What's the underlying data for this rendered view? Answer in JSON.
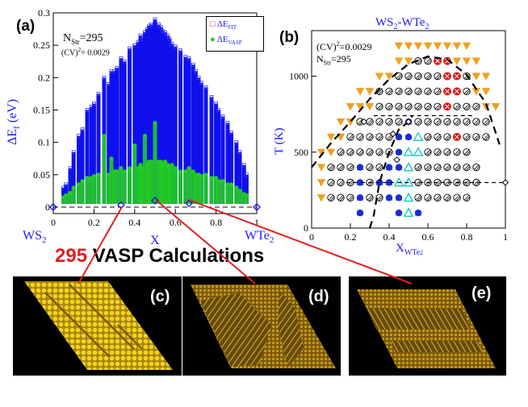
{
  "chart_data": [
    {
      "type": "scatter",
      "panel_label": "(a)",
      "ylabel": "ΔE",
      "ylabel_sub": "f",
      "ylabel_unit": " (eV)",
      "xlabel": "X",
      "xlim": [
        0,
        1
      ],
      "ylim": [
        -0.01,
        0.3
      ],
      "xticks": [
        "0",
        "0.2",
        "0.4",
        "0.6",
        "0.8",
        "1"
      ],
      "yticks": [
        "0",
        "0.05",
        "0.1",
        "0.15",
        "0.2",
        "0.25",
        "0.3"
      ],
      "left_end_label": "WS",
      "left_end_sub": "2",
      "right_end_label": "WTe",
      "right_end_sub": "2",
      "nstr_label": "N",
      "nstr_sub": "Str",
      "nstr_value": "=295",
      "cv_label": "(CV)",
      "cv_sup": "2",
      "cv_value": "= 0.0029",
      "legend": [
        {
          "symbol": "□",
          "name": "ΔE",
          "sub": "FIT",
          "color": "#ee2222"
        },
        {
          "symbol": "●",
          "name": "ΔE",
          "sub": "VASP",
          "color": "#22cc22"
        }
      ],
      "series": [
        {
          "name": "FIT column maxima",
          "x": [
            0.05,
            0.0625,
            0.0833,
            0.1,
            0.125,
            0.1429,
            0.1667,
            0.1875,
            0.2,
            0.2222,
            0.25,
            0.2727,
            0.2857,
            0.3,
            0.3125,
            0.3333,
            0.35,
            0.375,
            0.4,
            0.4167,
            0.4286,
            0.4375,
            0.45,
            0.4615,
            0.4706,
            0.4815,
            0.5,
            0.5185,
            0.5294,
            0.5385,
            0.55,
            0.5625,
            0.5714,
            0.5833,
            0.6,
            0.625,
            0.65,
            0.6667,
            0.6875,
            0.7,
            0.7143,
            0.7273,
            0.75,
            0.7778,
            0.8,
            0.8125,
            0.8333,
            0.8571,
            0.875,
            0.9,
            0.9167,
            0.9375,
            0.95
          ],
          "values": [
            0.03,
            0.035,
            0.06,
            0.085,
            0.11,
            0.12,
            0.15,
            0.155,
            0.16,
            0.175,
            0.2,
            0.19,
            0.21,
            0.21,
            0.215,
            0.23,
            0.225,
            0.245,
            0.25,
            0.255,
            0.265,
            0.26,
            0.27,
            0.275,
            0.28,
            0.282,
            0.29,
            0.282,
            0.278,
            0.272,
            0.27,
            0.265,
            0.26,
            0.252,
            0.248,
            0.242,
            0.232,
            0.23,
            0.22,
            0.21,
            0.2,
            0.192,
            0.185,
            0.17,
            0.16,
            0.15,
            0.14,
            0.13,
            0.115,
            0.1,
            0.085,
            0.065,
            0.05
          ]
        },
        {
          "name": "VASP column maxima",
          "x": [
            0.05,
            0.0625,
            0.0833,
            0.1,
            0.125,
            0.1429,
            0.1667,
            0.1875,
            0.2,
            0.2222,
            0.25,
            0.2727,
            0.2857,
            0.3,
            0.3125,
            0.3333,
            0.35,
            0.375,
            0.4,
            0.4167,
            0.4286,
            0.4375,
            0.45,
            0.4615,
            0.4706,
            0.4815,
            0.5,
            0.5185,
            0.5294,
            0.5385,
            0.55,
            0.5625,
            0.5714,
            0.5833,
            0.6,
            0.625,
            0.65,
            0.6667,
            0.6875,
            0.7,
            0.7143,
            0.7273,
            0.75,
            0.7778,
            0.8,
            0.8125,
            0.8333,
            0.8571,
            0.875,
            0.9,
            0.9167,
            0.9375,
            0.95
          ],
          "values": [
            0.015,
            0.018,
            0.022,
            0.03,
            0.035,
            0.04,
            0.045,
            0.045,
            0.048,
            0.05,
            0.11,
            0.05,
            0.075,
            0.055,
            0.055,
            0.06,
            0.055,
            0.06,
            0.095,
            0.06,
            0.065,
            0.06,
            0.11,
            0.065,
            0.07,
            0.07,
            0.13,
            0.07,
            0.07,
            0.065,
            0.07,
            0.065,
            0.06,
            0.065,
            0.06,
            0.055,
            0.055,
            0.06,
            0.055,
            0.05,
            0.05,
            0.048,
            0.05,
            0.045,
            0.045,
            0.04,
            0.04,
            0.035,
            0.035,
            0.03,
            0.025,
            0.02,
            0.018
          ]
        },
        {
          "name": "Ground states",
          "x": [
            0,
            0.333,
            0.5,
            0.667,
            1
          ],
          "values": [
            0,
            0.003,
            0.01,
            0.006,
            0
          ]
        }
      ]
    },
    {
      "type": "scatter",
      "panel_label": "(b)",
      "title": "WS",
      "title_sub1": "2",
      "title_mid": "-WTe",
      "title_sub2": "2",
      "ylabel": "T (K)",
      "xlabel": "X",
      "xlabel_sub": "WTe",
      "xlabel_sub2": "2",
      "xlim": [
        0,
        1
      ],
      "ylim": [
        0,
        1300
      ],
      "xticks": [
        "0",
        "0.2",
        "0.4",
        "0.6",
        "0.8",
        "1"
      ],
      "yticks": [
        "0",
        "500",
        "1000"
      ],
      "cv_label": "(CV)",
      "cv_sup": "2",
      "cv_value": "=0.0029",
      "nstr_label": "N",
      "nstr_sub": "Str",
      "nstr_value": "=295",
      "temperatures": [
        100,
        200,
        300,
        400,
        500,
        600,
        700,
        800,
        900,
        1000,
        1100,
        1200
      ],
      "x": [
        0.05,
        0.1,
        0.15,
        0.2,
        0.25,
        0.3,
        0.35,
        0.4,
        0.45,
        0.5,
        0.55,
        0.6,
        0.65,
        0.7,
        0.75,
        0.8,
        0.85,
        0.9,
        0.95
      ],
      "mark_codes": [
        "....B...BCB........",
        "TSSSBSSBBCSSSSSS...",
        "TSSSBSBBCCSSSSSSS..",
        "TSSSBSSBBCSSSSSSS..",
        "TTSSSSSSBCCSSSSS...",
        ".TTSSSSSBBCSSSXSSS.",
        "..TTSSSSSBSSSSSSSS.",
        "...TTTSSSSSSSXSSSTT",
        "....TTSSSSSSSXXSTT.",
        "......TTSSSSSXXSTT.",
        "........TTSSXXTTT..",
        "........TTTTTTTT..."
      ],
      "mark_key": {
        "S": "disordered (hatched)",
        "B": "blue triangle",
        "C": "cyan open triangle",
        "X": "red crossed circle",
        "T": "orange down-triangle"
      },
      "boundary_curves": [
        {
          "name": "outer dome",
          "x": [
            0,
            0.1,
            0.2,
            0.3,
            0.4,
            0.5,
            0.6,
            0.7,
            0.8,
            0.9,
            0.97
          ],
          "values": [
            400,
            560,
            700,
            850,
            980,
            1080,
            1130,
            1110,
            1010,
            820,
            550
          ]
        },
        {
          "name": "inner miscibility gap",
          "x": [
            0.3,
            0.32,
            0.35,
            0.4,
            0.45,
            0.5,
            0.52
          ],
          "values": [
            0,
            80,
            300,
            500,
            650,
            700,
            740
          ]
        },
        {
          "name": "horizontal guide 1",
          "x": [
            0.18,
            1.0
          ],
          "values": [
            300,
            300
          ]
        },
        {
          "name": "horizontal guide 2",
          "x": [
            0.32,
            0.83
          ],
          "values": [
            740,
            740
          ]
        }
      ]
    }
  ],
  "caption": {
    "number": "295",
    "text": " VASP Calculations",
    "number_color": "#e02020",
    "text_color": "#000000"
  },
  "panels": [
    {
      "label": "(c)"
    },
    {
      "label": "(d)"
    },
    {
      "label": "(e)"
    }
  ]
}
